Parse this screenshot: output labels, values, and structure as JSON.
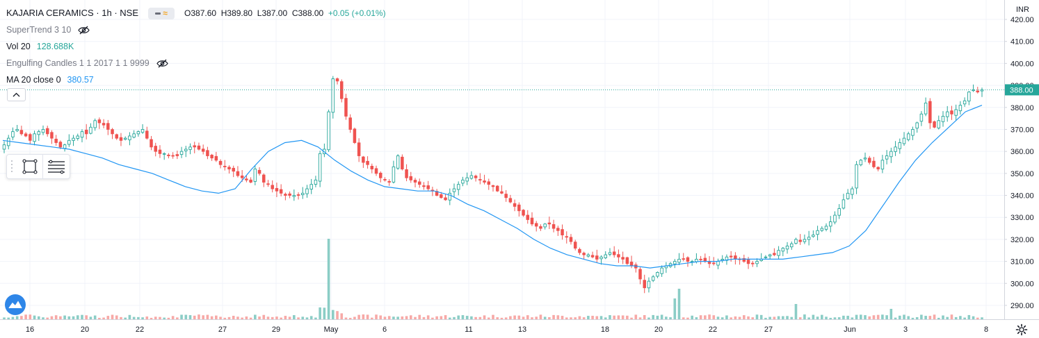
{
  "symbol": {
    "title": "KAJARIA CERAMICS · 1h · NSE",
    "open_label": "O",
    "open": "387.60",
    "high_label": "H",
    "high": "389.80",
    "low_label": "L",
    "low": "387.00",
    "close_label": "C",
    "close": "388.00",
    "change": "+0.05 (+0.01%)"
  },
  "indicators": [
    {
      "name": "SuperTrend 3 10",
      "value": "",
      "hidden": true
    },
    {
      "name": "Vol 20",
      "value": "128.688K",
      "hidden": false
    },
    {
      "name": "Engulfing Candles 1 1 2017 1 1 9999",
      "value": "",
      "hidden": true
    },
    {
      "name": "MA 20 close 0",
      "value": "380.57",
      "hidden": false
    }
  ],
  "price_axis": {
    "currency": "INR",
    "ticks": [
      "420.00",
      "410.00",
      "400.00",
      "390.00",
      "380.00",
      "370.00",
      "360.00",
      "350.00",
      "340.00",
      "330.00",
      "320.00",
      "310.00",
      "300.00",
      "290.00"
    ],
    "current_price_label": "388.00"
  },
  "time_axis": {
    "labels": [
      "16",
      "20",
      "22",
      "27",
      "29",
      "May",
      "6",
      "11",
      "13",
      "18",
      "20",
      "22",
      "27",
      "Jun",
      "3",
      "8"
    ]
  },
  "colors": {
    "up": "#26a69a",
    "down": "#ef5350",
    "ma": "#2196f3",
    "vol_up": "#8bcdc6",
    "vol_down": "#f7a9a7",
    "last_price": "#26a69a",
    "grid": "#f0f3fa"
  },
  "icons": {
    "eye_off": "eye-crossed-icon",
    "collapse": "chevron-up-icon",
    "rectangle_tool": "rectangle-icon",
    "fib_tool": "horizontal-lines-icon",
    "logo": "tradingview-logo-icon",
    "settings": "gear-icon"
  },
  "chart_data": {
    "type": "candlestick",
    "title": "KAJARIA CERAMICS · 1h · NSE",
    "y_range": [
      285,
      423
    ],
    "x_labels": [
      "16",
      "20",
      "22",
      "27",
      "29",
      "May",
      "6",
      "11",
      "13",
      "18",
      "20",
      "22",
      "27",
      "Jun",
      "3",
      "8"
    ],
    "close_series": [
      363,
      366,
      369,
      370,
      368,
      367,
      365,
      368,
      369,
      370,
      368,
      366,
      364,
      362,
      363,
      365,
      366,
      367,
      369,
      368,
      371,
      374,
      373,
      372,
      370,
      368,
      366,
      365,
      366,
      367,
      368,
      369,
      370,
      366,
      362,
      360,
      359,
      359,
      358,
      358,
      358,
      360,
      361,
      362,
      362,
      361,
      360,
      358,
      357,
      356,
      354,
      353,
      352,
      351,
      349,
      348,
      347,
      346,
      352,
      350,
      346,
      345,
      343,
      342,
      341,
      340,
      340,
      340,
      340,
      341,
      343,
      345,
      347,
      359,
      361,
      378,
      393,
      392,
      384,
      376,
      370,
      364,
      358,
      355,
      354,
      352,
      350,
      348,
      347,
      346,
      353,
      358,
      352,
      348,
      347,
      346,
      345,
      344,
      343,
      342,
      340,
      339,
      338,
      341,
      343,
      345,
      347,
      348,
      349,
      348,
      347,
      346,
      345,
      344,
      342,
      341,
      339,
      337,
      335,
      333,
      331,
      329,
      327,
      326,
      325,
      327,
      327,
      325,
      324,
      322,
      321,
      319,
      316,
      314,
      313,
      313,
      312,
      311,
      312,
      313,
      314,
      313,
      312,
      311,
      309,
      308,
      307,
      302,
      298,
      301,
      303,
      305,
      307,
      308,
      309,
      310,
      311,
      311,
      310,
      310,
      311,
      311,
      310,
      309,
      309,
      310,
      311,
      312,
      312,
      311,
      311,
      310,
      309,
      309,
      310,
      311,
      312,
      313,
      313,
      315,
      316,
      317,
      318,
      320,
      319,
      320,
      321,
      322,
      324,
      325,
      326,
      328,
      331,
      334,
      338,
      341,
      343,
      354,
      356,
      357,
      355,
      353,
      352,
      356,
      358,
      360,
      362,
      364,
      366,
      368,
      370,
      373,
      377,
      382,
      373,
      371,
      374,
      376,
      378,
      377,
      379,
      381,
      383,
      387,
      388,
      387,
      388
    ],
    "ma_series": [
      365,
      364,
      363,
      362,
      361,
      359,
      357,
      354,
      352,
      350,
      347,
      344,
      342,
      341,
      343,
      352,
      360,
      364,
      365,
      362,
      356,
      351,
      347,
      344,
      343,
      342,
      342,
      340,
      336,
      333,
      329,
      325,
      320,
      316,
      313,
      311,
      309,
      308,
      308,
      307,
      308,
      309,
      310,
      310,
      311,
      311,
      311,
      311,
      312,
      313,
      314,
      317,
      324,
      335,
      346,
      356,
      364,
      371,
      378,
      381
    ],
    "volume_series": "relative bars, spike on Apr 30 and mid-May 24"
  }
}
